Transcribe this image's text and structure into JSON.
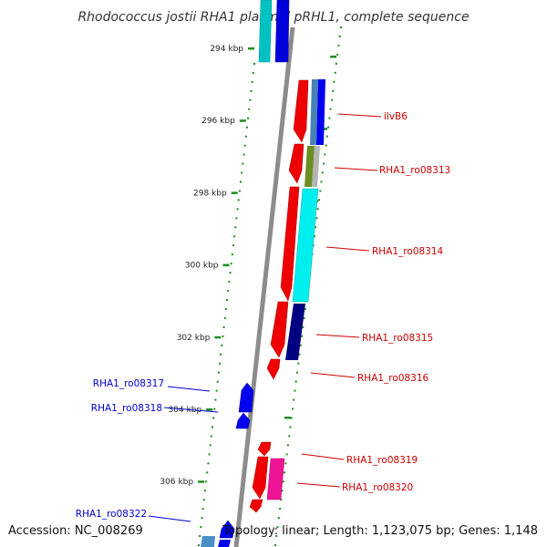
{
  "title": "Rhodococcus jostii RHA1 plasmid pRHL1, complete sequence",
  "footer": {
    "accession": "Accession: NC_008269",
    "summary": "Topology: linear; Length: 1,123,075 bp; Genes: 1,148"
  },
  "colors": {
    "backbone": "#8c8c8c",
    "dots": "#1e8c1e",
    "forward_label": "#cc0000",
    "reverse_label": "#0000cc"
  },
  "ticks": [
    {
      "label": "294 kbp",
      "kbp": 294
    },
    {
      "label": "296 kbp",
      "kbp": 296
    },
    {
      "label": "298 kbp",
      "kbp": 298
    },
    {
      "label": "300 kbp",
      "kbp": 300
    },
    {
      "label": "302 kbp",
      "kbp": 302
    },
    {
      "label": "304 kbp",
      "kbp": 304
    },
    {
      "label": "306 kbp",
      "kbp": 306
    }
  ],
  "genes": [
    {
      "label": "ilvB6",
      "strand": "forward"
    },
    {
      "label": "RHA1_ro08313",
      "strand": "forward"
    },
    {
      "label": "RHA1_ro08314",
      "strand": "forward"
    },
    {
      "label": "RHA1_ro08315",
      "strand": "forward"
    },
    {
      "label": "RHA1_ro08316",
      "strand": "forward"
    },
    {
      "label": "RHA1_ro08317",
      "strand": "reverse"
    },
    {
      "label": "RHA1_ro08318",
      "strand": "reverse"
    },
    {
      "label": "RHA1_ro08319",
      "strand": "forward"
    },
    {
      "label": "RHA1_ro08320",
      "strand": "forward"
    },
    {
      "label": "RHA1_ro08322",
      "strand": "reverse"
    }
  ]
}
